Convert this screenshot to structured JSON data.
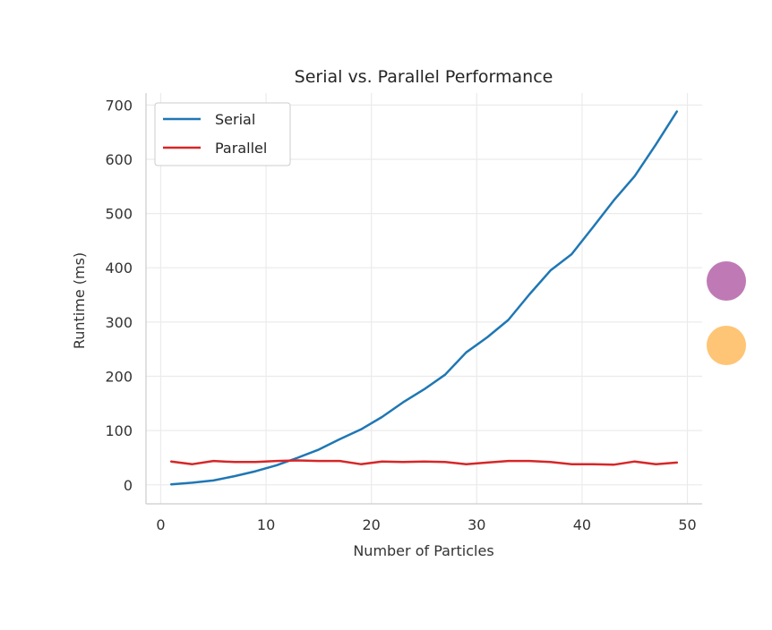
{
  "chart_data": {
    "type": "line",
    "title": "Serial vs. Parallel Performance",
    "xlabel": "Number of Particles",
    "ylabel": "Runtime (ms)",
    "xlim": [
      -1.4,
      51.4
    ],
    "ylim": [
      -35,
      722
    ],
    "xticks": [
      0,
      10,
      20,
      30,
      40,
      50
    ],
    "yticks": [
      0,
      100,
      200,
      300,
      400,
      500,
      600,
      700
    ],
    "grid": true,
    "legend_position": "top-left",
    "x": [
      1,
      3,
      5,
      7,
      9,
      11,
      13,
      15,
      17,
      19,
      21,
      23,
      25,
      27,
      29,
      31,
      33,
      35,
      37,
      39,
      41,
      43,
      45,
      47,
      49
    ],
    "series": [
      {
        "name": "Serial",
        "color": "#1f77b4",
        "values": [
          1,
          4,
          8,
          16,
          25,
          36,
          50,
          65,
          84,
          102,
          125,
          152,
          176,
          203,
          244,
          272,
          304,
          351,
          395,
          425,
          474,
          524,
          569,
          627,
          688
        ]
      },
      {
        "name": "Parallel",
        "color": "#d62728",
        "values": [
          43,
          38,
          44,
          42,
          42,
          44,
          45,
          44,
          44,
          38,
          43,
          42,
          43,
          42,
          38,
          41,
          44,
          44,
          42,
          38,
          38,
          37,
          43,
          38,
          41
        ]
      }
    ]
  },
  "decorations": {
    "circles": [
      {
        "name": "purple-dot",
        "color": "#bf7ab6"
      },
      {
        "name": "orange-dot",
        "color": "#fec576"
      }
    ]
  }
}
